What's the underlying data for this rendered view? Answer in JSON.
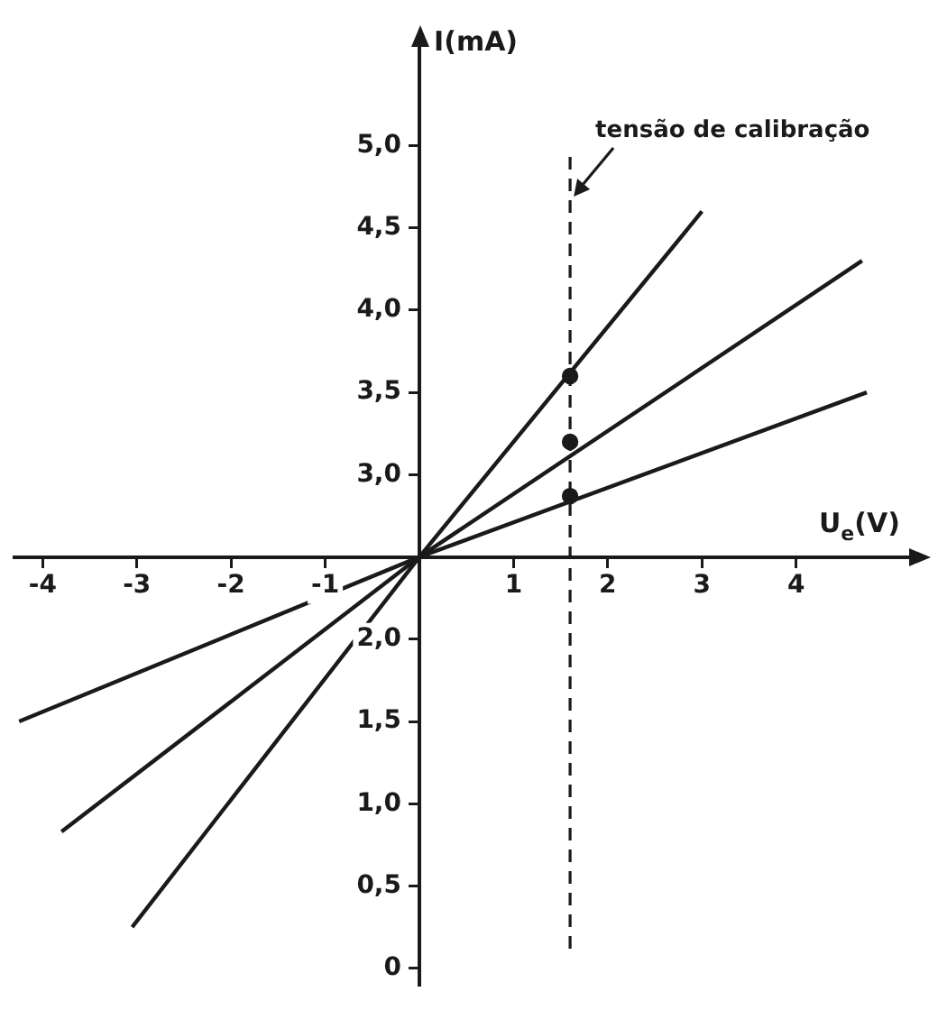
{
  "chart_data": {
    "type": "line",
    "xlabel": "U$_{e}$(V)",
    "ylabel": "I(mA)",
    "xlim": [
      -4.3,
      5.2
    ],
    "ylim": [
      -0.1,
      5.6
    ],
    "xticks": [
      {
        "value": -4,
        "label": "-4"
      },
      {
        "value": -3,
        "label": "-3"
      },
      {
        "value": -2,
        "label": "-2"
      },
      {
        "value": -1,
        "label": "-1"
      },
      {
        "value": 0,
        "label": null
      },
      {
        "value": 1,
        "label": "1"
      },
      {
        "value": 2,
        "label": "2"
      },
      {
        "value": 3,
        "label": "3"
      },
      {
        "value": 4,
        "label": "4"
      }
    ],
    "yticks": [
      {
        "value": 0,
        "label": "0"
      },
      {
        "value": 0.5,
        "label": "0,5"
      },
      {
        "value": 1,
        "label": "1,0"
      },
      {
        "value": 1.5,
        "label": "1,5"
      },
      {
        "value": 2,
        "label": "2,0"
      },
      {
        "value": 2.5,
        "label": null
      },
      {
        "value": 3,
        "label": "3,0"
      },
      {
        "value": 3.5,
        "label": "3,5"
      },
      {
        "value": 4,
        "label": "4,0"
      },
      {
        "value": 4.5,
        "label": "4,5"
      },
      {
        "value": 5,
        "label": "5,0"
      }
    ],
    "series": [
      {
        "color": "#1a1a1a",
        "x": [
          -3.05,
          0,
          3.0
        ],
        "values": [
          0.25,
          2.5,
          4.6
        ]
      },
      {
        "color": "#1a1a1a",
        "x": [
          -3.8,
          0,
          4.7
        ],
        "values": [
          0.83,
          2.5,
          4.3
        ]
      },
      {
        "color": "#1a1a1a",
        "x": [
          -4.25,
          0,
          4.75
        ],
        "values": [
          1.5,
          2.5,
          3.5
        ]
      },
      {
        "type": "scatter",
        "marker": "circle",
        "color": "#1a1a1a",
        "x": [
          1.6,
          1.6,
          1.6
        ],
        "values": [
          3.6,
          3.2,
          2.87
        ]
      }
    ],
    "ref_lines": [
      {
        "axis": "x",
        "value": 1.6,
        "label": "tensão de calibração",
        "line_style": "dashed",
        "color": "#1a1a1a"
      }
    ],
    "marker": "none",
    "line_style": "solid",
    "grid": false,
    "legend": false
  }
}
